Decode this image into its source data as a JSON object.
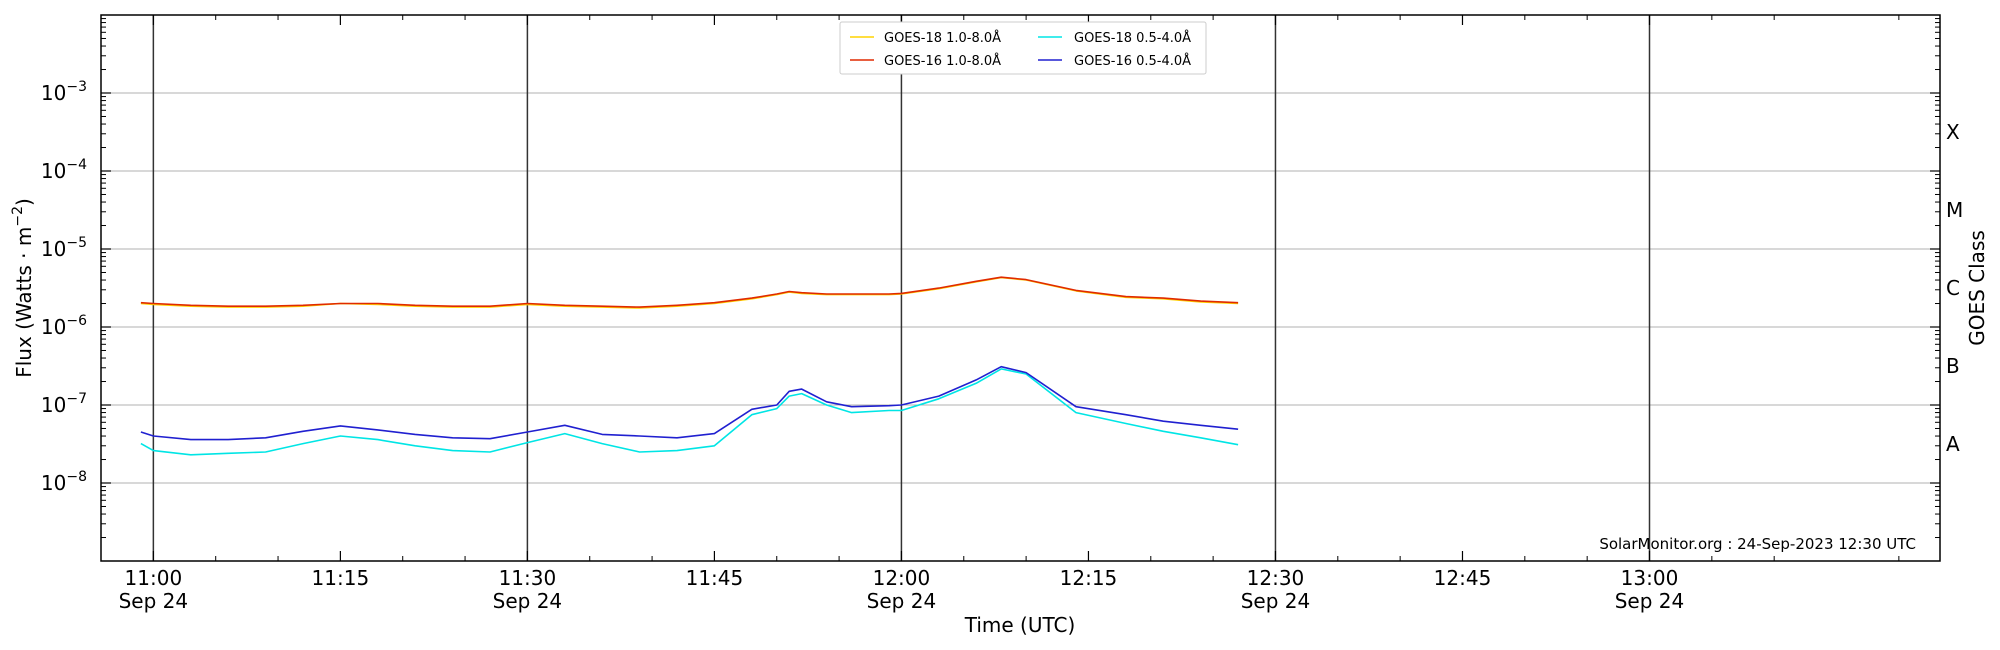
{
  "chart_data": {
    "type": "line",
    "xlabel": "Time (UTC)",
    "ylabel": "Flux (Watts · m",
    "ylabel_sup": "−2",
    "ylabel_close": ")",
    "right_label": "GOES Class",
    "watermark": "SolarMonitor.org : 24-Sep-2023 12:30 UTC",
    "y_scale": "log",
    "ylim": [
      1e-09,
      0.01
    ],
    "xlim_minutes": [
      10.8,
      58.3
    ],
    "x_origin_label": "2023-09-24 10:45 UTC",
    "x_ticks": [
      {
        "minute": 15,
        "time": "11:00",
        "date": "Sep 24"
      },
      {
        "minute": 30,
        "time": "11:15",
        "date": ""
      },
      {
        "minute": 45,
        "time": "11:30",
        "date": "Sep 24"
      },
      {
        "minute": 60,
        "time": "11:45",
        "date": ""
      },
      {
        "minute": 75,
        "time": "12:00",
        "date": "Sep 24"
      },
      {
        "minute": 90,
        "time": "12:15",
        "date": ""
      },
      {
        "minute": 105,
        "time": "12:30",
        "date": "Sep 24"
      },
      {
        "minute": 120,
        "time": "12:45",
        "date": ""
      },
      {
        "minute": 135,
        "time": "13:00",
        "date": "Sep 24"
      }
    ],
    "y_ticks": [
      {
        "exp": -8,
        "label": "10"
      },
      {
        "exp": -7,
        "label": "10"
      },
      {
        "exp": -6,
        "label": "10"
      },
      {
        "exp": -5,
        "label": "10"
      },
      {
        "exp": -4,
        "label": "10"
      },
      {
        "exp": -3,
        "label": "10"
      }
    ],
    "goes_classes": [
      {
        "label": "A",
        "exp": -7.5
      },
      {
        "label": "B",
        "exp": -6.5
      },
      {
        "label": "C",
        "exp": -5.5
      },
      {
        "label": "M",
        "exp": -4.5
      },
      {
        "label": "X",
        "exp": -3.5
      }
    ],
    "day_lines_minutes": [
      15,
      45,
      75,
      105,
      135
    ],
    "grid": "horizontal",
    "legend_position": "top-center",
    "x_times": [
      "10:59",
      "11:00",
      "11:03",
      "11:06",
      "11:09",
      "11:12",
      "11:15",
      "11:18",
      "11:21",
      "11:24",
      "11:27",
      "11:30",
      "11:33",
      "11:36",
      "11:39",
      "11:42",
      "11:45",
      "11:48",
      "11:50",
      "11:51",
      "11:52",
      "11:54",
      "11:56",
      "11:59",
      "12:00",
      "12:03",
      "12:06",
      "12:08",
      "12:10",
      "12:14",
      "12:18",
      "12:21",
      "12:24",
      "12:27"
    ],
    "series": [
      {
        "name": "GOES-18 1.0-8.0Å",
        "color": "#ffd400",
        "values": [
          2e-06,
          1.95e-06,
          1.85e-06,
          1.8e-06,
          1.8e-06,
          1.85e-06,
          2e-06,
          1.95e-06,
          1.85e-06,
          1.8e-06,
          1.8e-06,
          1.95e-06,
          1.85e-06,
          1.8e-06,
          1.75e-06,
          1.85e-06,
          2e-06,
          2.3e-06,
          2.6e-06,
          2.8e-06,
          2.7e-06,
          2.6e-06,
          2.6e-06,
          2.6e-06,
          2.65e-06,
          3.1e-06,
          3.8e-06,
          4.3e-06,
          4e-06,
          2.9e-06,
          2.4e-06,
          2.3e-06,
          2.1e-06,
          2e-06
        ]
      },
      {
        "name": "GOES-16 1.0-8.0Å",
        "color": "#e02a00",
        "values": [
          2.05e-06,
          2e-06,
          1.9e-06,
          1.85e-06,
          1.85e-06,
          1.9e-06,
          2e-06,
          2e-06,
          1.9e-06,
          1.85e-06,
          1.85e-06,
          2e-06,
          1.9e-06,
          1.85e-06,
          1.8e-06,
          1.9e-06,
          2.05e-06,
          2.35e-06,
          2.65e-06,
          2.85e-06,
          2.75e-06,
          2.65e-06,
          2.65e-06,
          2.65e-06,
          2.7e-06,
          3.15e-06,
          3.85e-06,
          4.35e-06,
          4.05e-06,
          2.95e-06,
          2.45e-06,
          2.35e-06,
          2.15e-06,
          2.05e-06
        ]
      },
      {
        "name": "GOES-18 0.5-4.0Å",
        "color": "#00e5e5",
        "values": [
          3.2e-08,
          2.6e-08,
          2.3e-08,
          2.4e-08,
          2.5e-08,
          3.2e-08,
          4e-08,
          3.6e-08,
          3e-08,
          2.6e-08,
          2.5e-08,
          3.3e-08,
          4.3e-08,
          3.2e-08,
          2.5e-08,
          2.6e-08,
          3e-08,
          7.5e-08,
          9e-08,
          1.3e-07,
          1.4e-07,
          1e-07,
          8e-08,
          8.5e-08,
          8.5e-08,
          1.2e-07,
          1.9e-07,
          2.9e-07,
          2.5e-07,
          8e-08,
          5.8e-08,
          4.6e-08,
          3.8e-08,
          3.1e-08
        ]
      },
      {
        "name": "GOES-16 0.5-4.0Å",
        "color": "#2020d0",
        "values": [
          4.5e-08,
          4e-08,
          3.6e-08,
          3.6e-08,
          3.8e-08,
          4.6e-08,
          5.4e-08,
          4.8e-08,
          4.2e-08,
          3.8e-08,
          3.7e-08,
          4.5e-08,
          5.5e-08,
          4.2e-08,
          4e-08,
          3.8e-08,
          4.3e-08,
          8.8e-08,
          1e-07,
          1.5e-07,
          1.6e-07,
          1.1e-07,
          9.5e-08,
          9.8e-08,
          1e-07,
          1.3e-07,
          2.1e-07,
          3.1e-07,
          2.6e-07,
          9.5e-08,
          7.5e-08,
          6.2e-08,
          5.5e-08,
          4.9e-08
        ]
      }
    ]
  }
}
